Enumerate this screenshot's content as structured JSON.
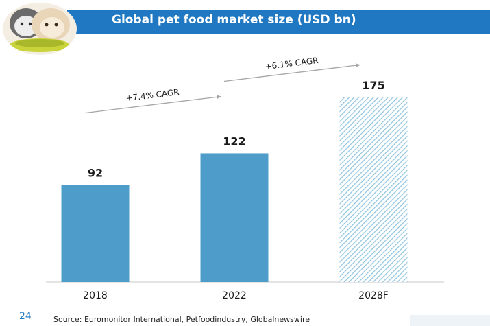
{
  "header": {
    "title": "Global pet food market size (USD bn)",
    "logo_icon": "cat-and-dog-photo-icon"
  },
  "chart_data": {
    "type": "bar",
    "title": "Global pet food market size (USD bn)",
    "categories": [
      "2018",
      "2022",
      "2028F"
    ],
    "values": [
      92,
      122,
      175
    ],
    "value_labels": [
      "92",
      "122",
      "175"
    ],
    "forecast": [
      false,
      false,
      true
    ],
    "annotations": [
      {
        "text": "+7.4% CAGR",
        "from": "2018",
        "to": "2022"
      },
      {
        "text": "+6.1% CAGR",
        "from": "2022",
        "to": "2028F"
      }
    ],
    "xlabel": "",
    "ylabel": "",
    "ylim": [
      0,
      175
    ],
    "grid": false,
    "colors": {
      "bar": "#4d9cca",
      "forecast_hatch": "#8ec3df",
      "axis": "#c9c9c9",
      "arrow": "#a6a6a6"
    }
  },
  "footer": {
    "page_number": "24",
    "source": "Source: Euromonitor International, Petfoodindustry, Globalnewswire"
  }
}
